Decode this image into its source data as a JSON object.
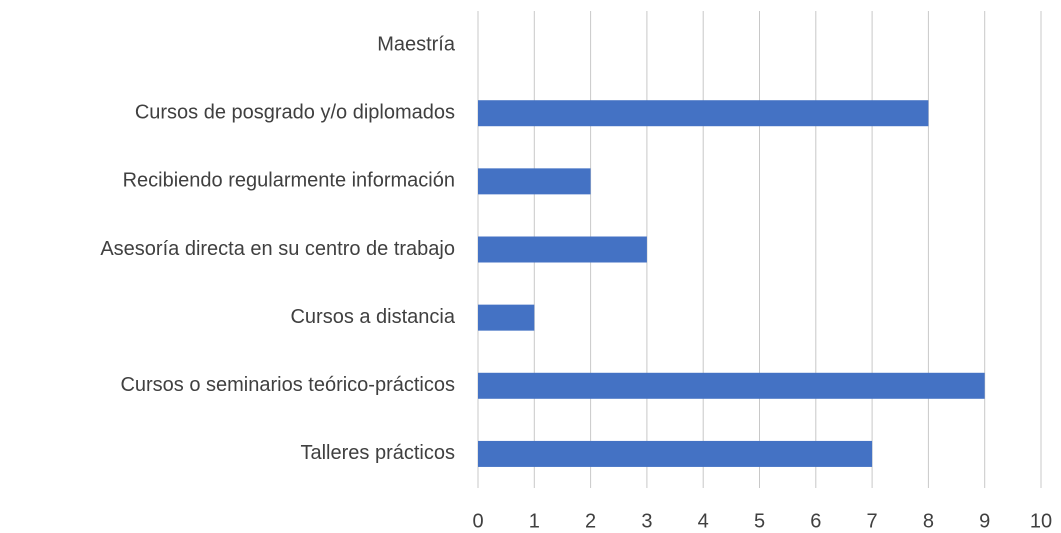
{
  "chart_data": {
    "type": "bar",
    "orientation": "horizontal",
    "categories": [
      "Maestría",
      "Cursos de posgrado y/o diplomados",
      "Recibiendo regularmente información",
      "Asesoría directa en su centro de trabajo",
      "Cursos a distancia",
      "Cursos o seminarios teórico-prácticos",
      "Talleres prácticos"
    ],
    "values": [
      0,
      8,
      2,
      3,
      1,
      9,
      7
    ],
    "color": "#4472c4",
    "xlim": [
      0,
      10
    ],
    "xticks": [
      0,
      1,
      2,
      3,
      4,
      5,
      6,
      7,
      8,
      9,
      10
    ],
    "grid": true
  }
}
